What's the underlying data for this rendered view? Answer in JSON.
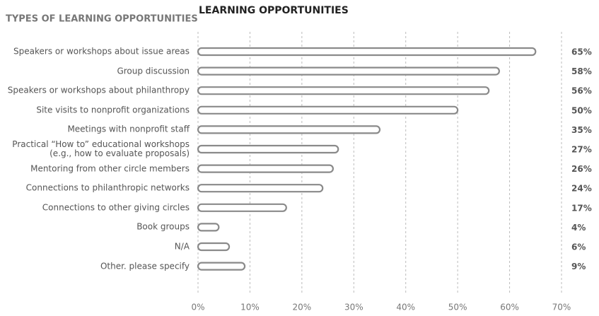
{
  "chart_data": {
    "type": "bar",
    "orientation": "horizontal",
    "title": "LEARNING OPPORTUNITIES",
    "category_header": "TYPES OF LEARNING OPPORTUNITIES",
    "categories": [
      "Speakers or workshops about issue areas",
      "Group discussion",
      "Speakers or workshops about philanthropy",
      "Site visits to nonprofit organizations",
      "Meetings with nonprofit staff",
      "Practical “How to” educational workshops\n(e.g., how to evaluate proposals)",
      "Mentoring from other circle members",
      "Connections to philanthropic networks",
      "Connections to other giving circles",
      "Book groups",
      "N/A",
      "Other. please specify"
    ],
    "values": [
      65,
      58,
      56,
      50,
      35,
      27,
      26,
      24,
      17,
      4,
      6,
      9
    ],
    "value_labels": [
      "65%",
      "58%",
      "56%",
      "50%",
      "35%",
      "27%",
      "26%",
      "24%",
      "17%",
      "4%",
      "6%",
      "9%"
    ],
    "color": "#8a8a8a",
    "xlim": [
      0,
      70
    ],
    "xticks": [
      {
        "value": 0,
        "label": "0%"
      },
      {
        "value": 10,
        "label": "10%"
      },
      {
        "value": 20,
        "label": "20%"
      },
      {
        "value": 30,
        "label": "30%"
      },
      {
        "value": 40,
        "label": "40%"
      },
      {
        "value": 50,
        "label": "50%"
      },
      {
        "value": 60,
        "label": "60%"
      },
      {
        "value": 70,
        "label": "70%"
      }
    ],
    "grid": true
  }
}
